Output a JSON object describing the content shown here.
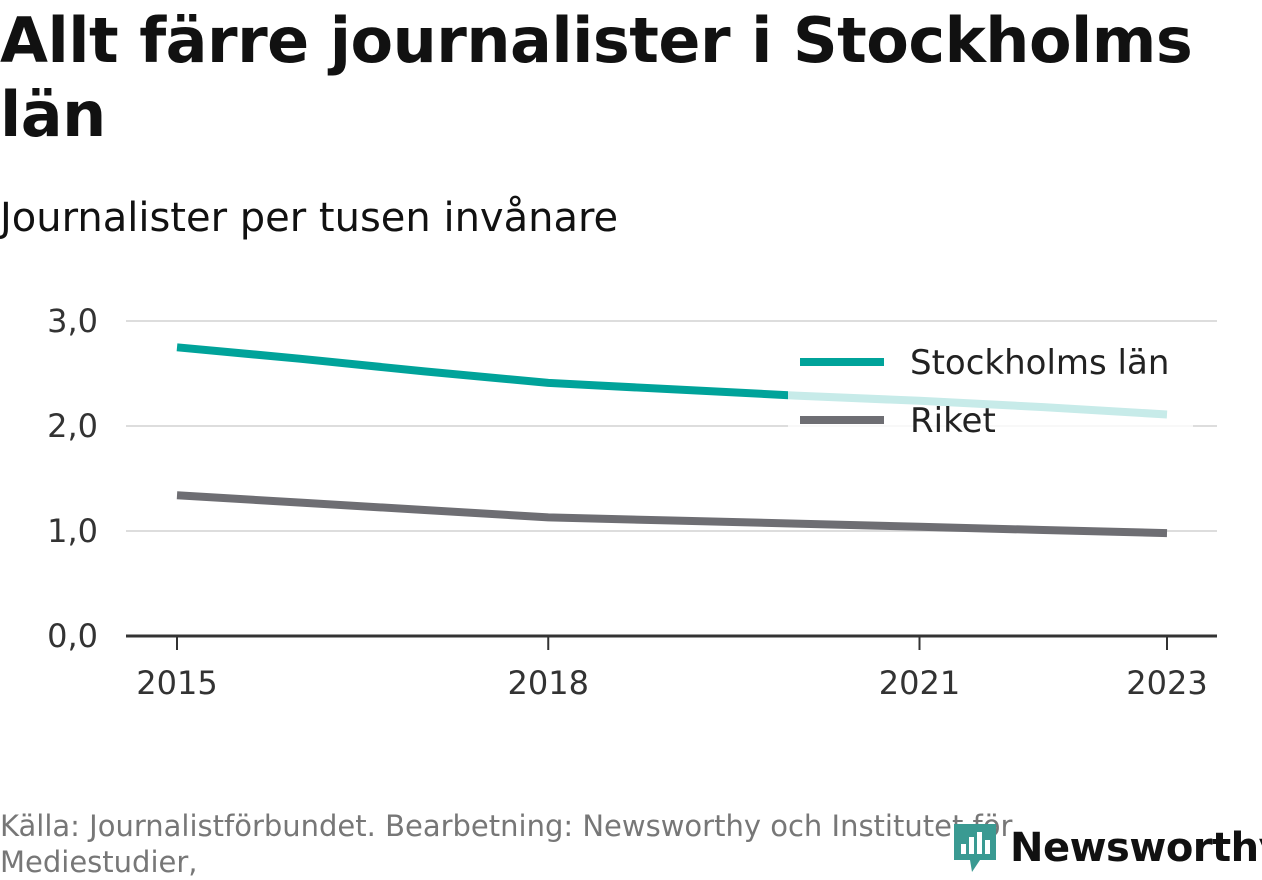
{
  "colors": {
    "stockholm": "#00A39A",
    "riket": "#6E6E73",
    "brand": "#3A9A92"
  },
  "chart_data": {
    "type": "line",
    "title": "Allt färre journalister i Stockholms län",
    "subtitle": "Journalister per tusen invånare",
    "xlabel": "",
    "ylabel": "",
    "x_ticks": [
      2015,
      2018,
      2021,
      2023
    ],
    "y_ticks": [
      "0,0",
      "1,0",
      "2,0",
      "3,0"
    ],
    "y_tick_values": [
      0,
      1,
      2,
      3
    ],
    "xlim": [
      2015,
      2023
    ],
    "ylim": [
      0,
      3
    ],
    "grid": "horizontal",
    "legend_position": "top-right",
    "series": [
      {
        "name": "Stockholms län",
        "x": [
          2015,
          2016,
          2017,
          2018,
          2019,
          2020,
          2021,
          2022,
          2023
        ],
        "values": [
          2.75,
          2.64,
          2.52,
          2.41,
          2.35,
          2.29,
          2.24,
          2.18,
          2.11
        ]
      },
      {
        "name": "Riket",
        "x": [
          2015,
          2016,
          2017,
          2018,
          2019,
          2020,
          2021,
          2022,
          2023
        ],
        "values": [
          1.34,
          1.27,
          1.2,
          1.13,
          1.1,
          1.07,
          1.04,
          1.01,
          0.98
        ]
      }
    ]
  },
  "footer": {
    "source": "Källa: Journalistförbundet. Bearbetning: Newsworthy och Institutet för Mediestudier,",
    "brand": "Newsworthy",
    "brand_icon": "newsworthy-logo-icon"
  }
}
